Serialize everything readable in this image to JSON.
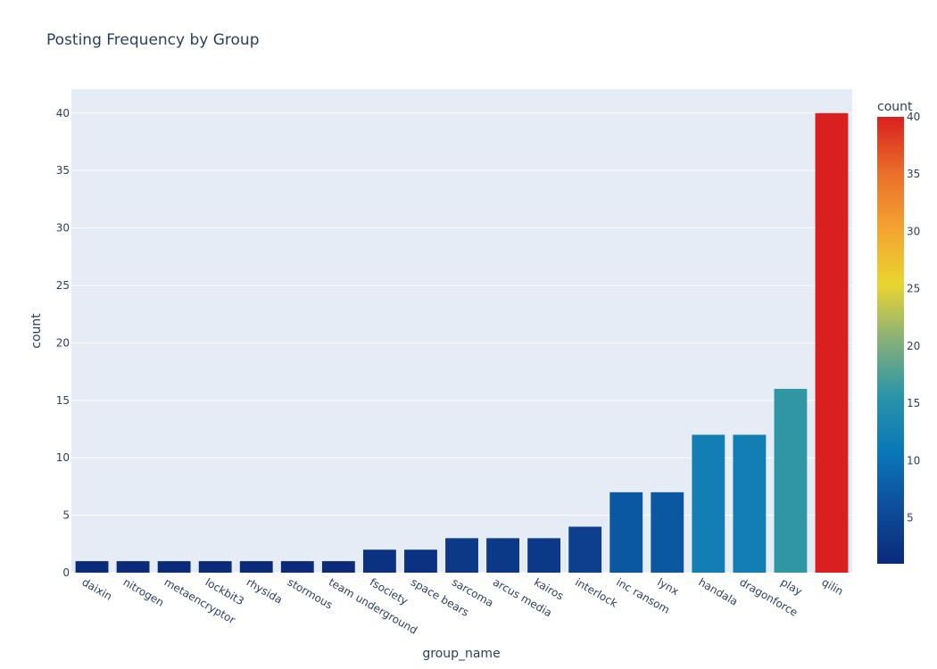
{
  "chart_data": {
    "type": "bar",
    "title": "Posting Frequency by Group",
    "xlabel": "group_name",
    "ylabel": "count",
    "categories": [
      "daixin",
      "nitrogen",
      "metaencryptor",
      "lockbit3",
      "rhysida",
      "stormous",
      "team underground",
      "fsociety",
      "space bears",
      "sarcoma",
      "arcus media",
      "kairos",
      "interlock",
      "inc ransom",
      "lynx",
      "handala",
      "dragonforce",
      "play",
      "qilin"
    ],
    "values": [
      1,
      1,
      1,
      1,
      1,
      1,
      1,
      2,
      2,
      3,
      3,
      3,
      4,
      7,
      7,
      12,
      12,
      16,
      40
    ],
    "ylim": [
      0,
      42
    ],
    "yticks": [
      0,
      5,
      10,
      15,
      20,
      25,
      30,
      35,
      40
    ],
    "grid": true,
    "colorbar": {
      "title": "count",
      "range": [
        1,
        40
      ],
      "ticks": [
        5,
        10,
        15,
        20,
        25,
        30,
        35,
        40
      ],
      "colorscale": [
        "#0a2a7a",
        "#0d4d9a",
        "#0a77b8",
        "#2a94a8",
        "#86b07a",
        "#e9d530",
        "#f3a430",
        "#ea6e2a",
        "#d9201e"
      ]
    },
    "colors": {
      "plot_bg": "#e5ecf6",
      "grid": "#ffffff",
      "text": "#2a3f5f"
    }
  }
}
